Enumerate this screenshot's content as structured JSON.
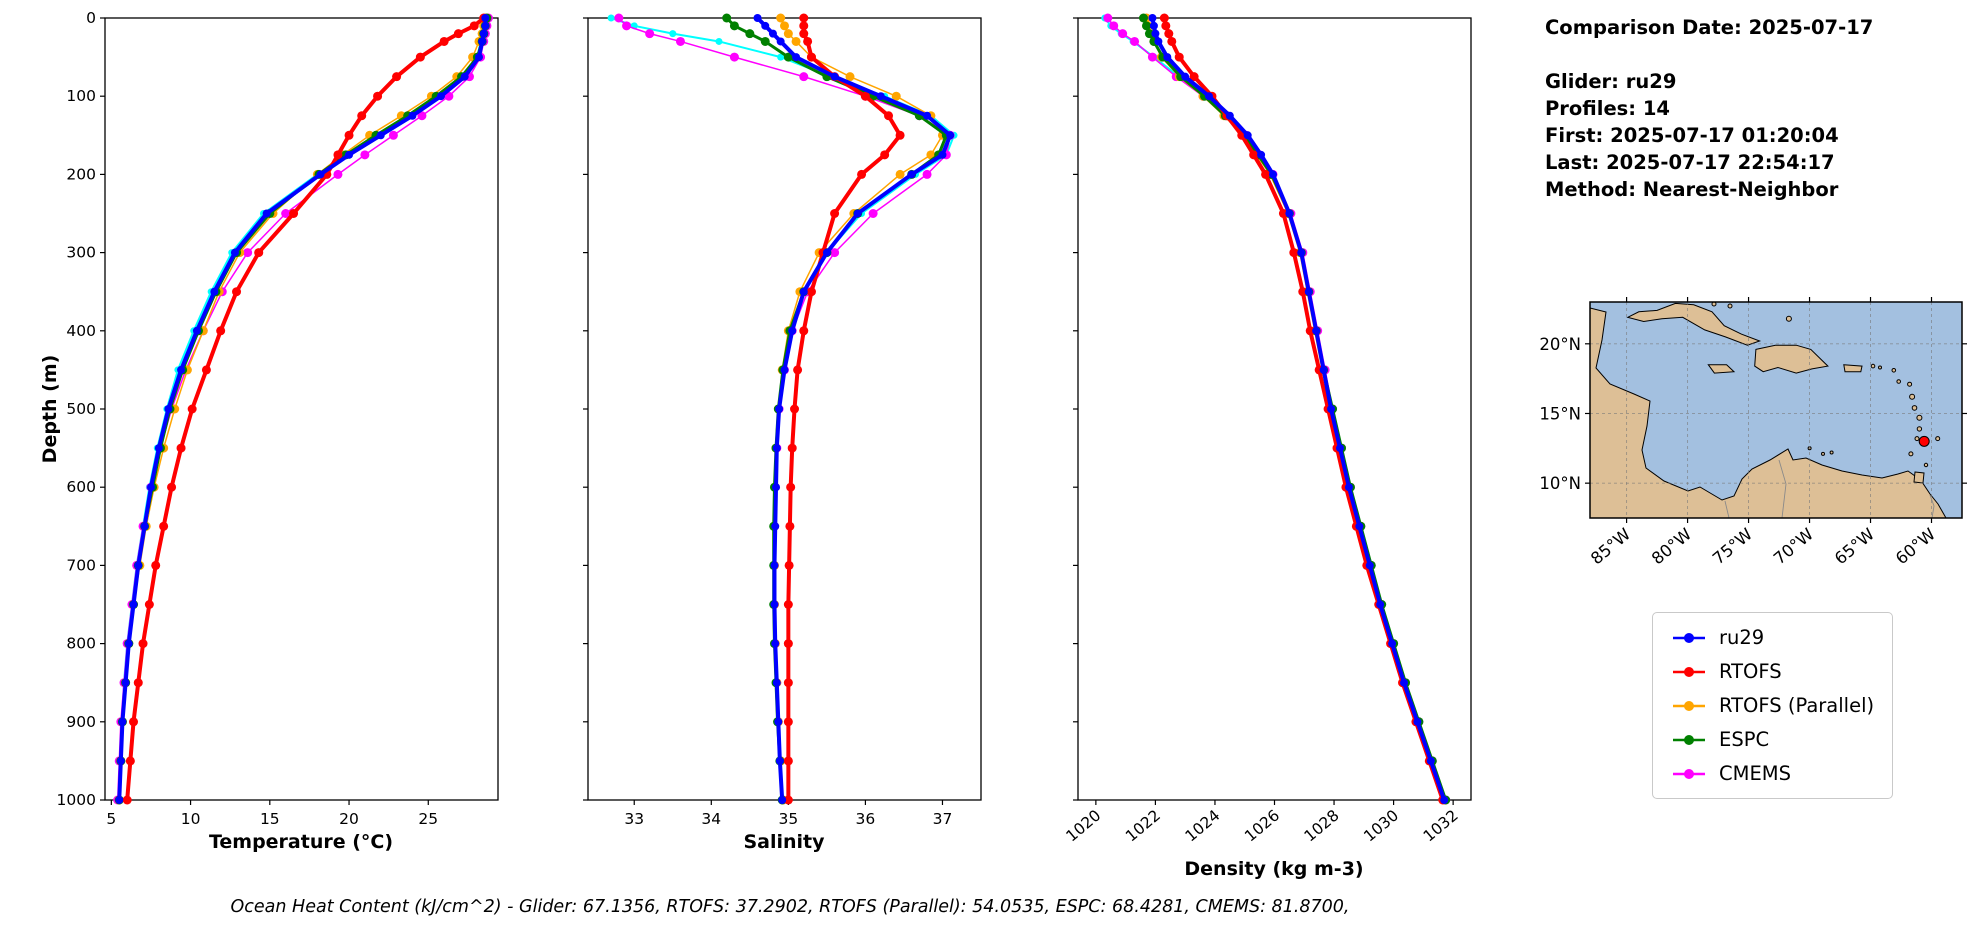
{
  "info_panel": {
    "comparison_date": "Comparison Date: 2025-07-17",
    "glider": "Glider: ru29",
    "profiles": "Profiles: 14",
    "first": "First: 2025-07-17 01:20:04",
    "last": "Last: 2025-07-17 22:54:17",
    "method": "Method: Nearest-Neighbor"
  },
  "footer": {
    "ohc_text": "Ocean Heat Content (kJ/cm^2) - Glider: 67.1356,  RTOFS: 37.2902,  RTOFS (Parallel): 54.0535,  ESPC: 68.4281,  CMEMS: 81.8700,"
  },
  "legend": {
    "items": [
      {
        "label": "ru29",
        "color": "#0000ff"
      },
      {
        "label": "RTOFS",
        "color": "#ff0000"
      },
      {
        "label": "RTOFS (Parallel)",
        "color": "#ffa500"
      },
      {
        "label": "ESPC",
        "color": "#008000"
      },
      {
        "label": "CMEMS",
        "color": "#ff00ff"
      }
    ]
  },
  "map": {
    "ocean_color": "#a3c0e0",
    "land_color": "#ddbf96",
    "marker_color": "#ff0000",
    "marker_lon_west": 60.6,
    "marker_lat_north": 13.0,
    "xtick_labels": [
      "85°W",
      "80°W",
      "75°W",
      "70°W",
      "65°W",
      "60°W"
    ],
    "ytick_labels": [
      "20°N",
      "15°N",
      "10°N"
    ]
  },
  "chart_data": [
    {
      "type": "line",
      "xlabel": "Temperature (°C)",
      "ylabel": "Depth (m)",
      "xlim": [
        4.6,
        29.4
      ],
      "ylim": [
        0,
        1000
      ],
      "y_inverted": true,
      "grid": false,
      "xticks": [
        5,
        10,
        15,
        20,
        25
      ],
      "yticks": [
        0,
        100,
        200,
        300,
        400,
        500,
        600,
        700,
        800,
        900,
        1000
      ],
      "xtick_rotation": 0,
      "show_ytick_labels": true,
      "depths": [
        0,
        10,
        20,
        30,
        50,
        75,
        100,
        125,
        150,
        175,
        200,
        250,
        300,
        350,
        400,
        450,
        500,
        550,
        600,
        650,
        700,
        750,
        800,
        850,
        900,
        950,
        1000
      ],
      "series": [
        {
          "name": "ru29-raw",
          "color": "#00ffff",
          "linewidth": 2,
          "markersize": 3.5,
          "values": [
            28.5,
            28.55,
            28.45,
            28.3,
            28.1,
            27.1,
            25.6,
            23.8,
            21.8,
            19.8,
            18.0,
            14.6,
            12.6,
            11.3,
            10.2,
            9.2,
            8.5,
            7.9,
            7.4,
            7.0,
            6.6,
            6.3,
            6.0,
            5.8,
            5.65,
            5.55,
            5.45
          ]
        },
        {
          "name": "CMEMS",
          "color": "#ff00ff",
          "linewidth": 1.5,
          "markersize": 4.5,
          "values": [
            28.8,
            28.7,
            28.6,
            28.5,
            28.3,
            27.6,
            26.3,
            24.6,
            22.8,
            21.0,
            19.3,
            16.0,
            13.6,
            12.0,
            10.8,
            9.7,
            8.8,
            8.1,
            7.5,
            7.0,
            6.6,
            6.3,
            6.0,
            5.8,
            5.6,
            5.5,
            5.4
          ]
        },
        {
          "name": "RTOFS-Parallel",
          "color": "#ffa500",
          "linewidth": 1.5,
          "markersize": 4.5,
          "values": [
            28.6,
            28.5,
            28.4,
            28.2,
            27.8,
            26.8,
            25.2,
            23.3,
            21.3,
            19.6,
            18.0,
            15.2,
            13.1,
            11.8,
            10.8,
            9.8,
            9.0,
            8.3,
            7.7,
            7.2,
            6.8,
            6.4,
            6.1,
            5.9,
            5.7,
            5.6,
            5.5
          ]
        },
        {
          "name": "ESPC",
          "color": "#008000",
          "linewidth": 3,
          "markersize": 4.5,
          "values": [
            28.7,
            28.6,
            28.5,
            28.4,
            28.1,
            27.1,
            25.5,
            23.7,
            21.7,
            19.8,
            18.1,
            15.0,
            12.9,
            11.6,
            10.5,
            9.5,
            8.7,
            8.1,
            7.6,
            7.1,
            6.7,
            6.4,
            6.1,
            5.9,
            5.7,
            5.6,
            5.5
          ]
        },
        {
          "name": "RTOFS",
          "color": "#ff0000",
          "linewidth": 4,
          "markersize": 4.5,
          "values": [
            28.5,
            27.9,
            26.9,
            26.0,
            24.5,
            23.0,
            21.8,
            20.8,
            20.0,
            19.3,
            18.6,
            16.5,
            14.3,
            12.9,
            11.9,
            11.0,
            10.1,
            9.4,
            8.8,
            8.3,
            7.8,
            7.4,
            7.0,
            6.7,
            6.4,
            6.2,
            6.0
          ]
        },
        {
          "name": "ru29",
          "color": "#0000ff",
          "linewidth": 4,
          "markersize": 4,
          "values": [
            28.6,
            28.6,
            28.5,
            28.4,
            28.2,
            27.3,
            25.8,
            24.0,
            22.0,
            20.0,
            18.2,
            14.8,
            12.8,
            11.5,
            10.4,
            9.4,
            8.6,
            8.0,
            7.5,
            7.1,
            6.7,
            6.4,
            6.1,
            5.9,
            5.7,
            5.6,
            5.5
          ]
        }
      ]
    },
    {
      "type": "line",
      "xlabel": "Salinity",
      "ylabel": "",
      "xlim": [
        32.4,
        37.5
      ],
      "ylim": [
        0,
        1000
      ],
      "y_inverted": true,
      "grid": false,
      "xticks": [
        33,
        34,
        35,
        36,
        37
      ],
      "yticks": [
        0,
        100,
        200,
        300,
        400,
        500,
        600,
        700,
        800,
        900,
        1000
      ],
      "xtick_rotation": 0,
      "show_ytick_labels": false,
      "depths": [
        0,
        10,
        20,
        30,
        50,
        75,
        100,
        125,
        150,
        175,
        200,
        250,
        300,
        350,
        400,
        450,
        500,
        550,
        600,
        650,
        700,
        750,
        800,
        850,
        900,
        950,
        1000
      ],
      "series": [
        {
          "name": "ru29-raw",
          "color": "#00ffff",
          "linewidth": 2,
          "markersize": 3.5,
          "values": [
            32.7,
            33.0,
            33.5,
            34.1,
            34.9,
            35.55,
            36.25,
            36.85,
            37.15,
            37.05,
            36.65,
            35.95,
            35.5,
            35.2,
            35.03,
            34.94,
            34.87,
            34.84,
            34.83,
            34.82,
            34.82,
            34.82,
            34.83,
            34.85,
            34.87,
            34.89,
            34.92
          ]
        },
        {
          "name": "CMEMS",
          "color": "#ff00ff",
          "linewidth": 1.5,
          "markersize": 4.5,
          "values": [
            32.8,
            32.9,
            33.2,
            33.6,
            34.3,
            35.2,
            36.0,
            36.7,
            37.1,
            37.05,
            36.8,
            36.1,
            35.6,
            35.25,
            35.05,
            34.95,
            34.88,
            34.85,
            34.83,
            34.82,
            34.82,
            34.82,
            34.83,
            34.85,
            34.87,
            34.9,
            34.93
          ]
        },
        {
          "name": "RTOFS-Parallel",
          "color": "#ffa500",
          "linewidth": 1.5,
          "markersize": 4.5,
          "values": [
            34.9,
            34.95,
            35.0,
            35.1,
            35.3,
            35.8,
            36.4,
            36.85,
            37.0,
            36.85,
            36.45,
            35.85,
            35.4,
            35.15,
            35.0,
            34.92,
            34.87,
            34.84,
            34.83,
            34.82,
            34.82,
            34.82,
            34.83,
            34.85,
            34.87,
            34.9,
            34.93
          ]
        },
        {
          "name": "ESPC",
          "color": "#008000",
          "linewidth": 3,
          "markersize": 4.5,
          "values": [
            34.2,
            34.3,
            34.5,
            34.7,
            35.0,
            35.5,
            36.1,
            36.7,
            37.05,
            36.95,
            36.6,
            35.9,
            35.5,
            35.2,
            35.02,
            34.93,
            34.87,
            34.84,
            34.82,
            34.81,
            34.81,
            34.81,
            34.82,
            34.84,
            34.86,
            34.89,
            34.92
          ]
        },
        {
          "name": "RTOFS",
          "color": "#ff0000",
          "linewidth": 4,
          "markersize": 4.5,
          "values": [
            35.2,
            35.2,
            35.2,
            35.25,
            35.3,
            35.6,
            36.0,
            36.3,
            36.45,
            36.25,
            35.95,
            35.6,
            35.45,
            35.3,
            35.2,
            35.12,
            35.08,
            35.05,
            35.03,
            35.02,
            35.01,
            35.0,
            35.0,
            35.0,
            35.0,
            35.0,
            35.0
          ]
        },
        {
          "name": "ru29",
          "color": "#0000ff",
          "linewidth": 4,
          "markersize": 4,
          "values": [
            34.6,
            34.7,
            34.8,
            34.9,
            35.1,
            35.6,
            36.2,
            36.8,
            37.1,
            37.0,
            36.6,
            35.9,
            35.5,
            35.2,
            35.05,
            34.95,
            34.88,
            34.85,
            34.84,
            34.83,
            34.82,
            34.82,
            34.83,
            34.85,
            34.87,
            34.89,
            34.92
          ]
        }
      ]
    },
    {
      "type": "line",
      "xlabel": "Density (kg m-3)",
      "ylabel": "",
      "xlim": [
        1019.4,
        1032.6
      ],
      "ylim": [
        0,
        1000
      ],
      "y_inverted": true,
      "grid": false,
      "xticks": [
        1020,
        1022,
        1024,
        1026,
        1028,
        1030,
        1032
      ],
      "yticks": [
        0,
        100,
        200,
        300,
        400,
        500,
        600,
        700,
        800,
        900,
        1000
      ],
      "xtick_rotation": 40,
      "show_ytick_labels": false,
      "depths": [
        0,
        10,
        20,
        30,
        50,
        75,
        100,
        125,
        150,
        175,
        200,
        250,
        300,
        350,
        400,
        450,
        500,
        550,
        600,
        650,
        700,
        750,
        800,
        850,
        900,
        950,
        1000
      ],
      "series": [
        {
          "name": "ru29-raw",
          "color": "#00ffff",
          "linewidth": 2,
          "markersize": 3.5,
          "values": [
            1020.3,
            1020.5,
            1020.85,
            1021.25,
            1021.95,
            1022.8,
            1023.7,
            1024.45,
            1025.1,
            1025.55,
            1025.95,
            1026.5,
            1026.9,
            1027.15,
            1027.4,
            1027.65,
            1027.9,
            1028.2,
            1028.5,
            1028.85,
            1029.2,
            1029.55,
            1029.95,
            1030.35,
            1030.8,
            1031.25,
            1031.7
          ]
        },
        {
          "name": "CMEMS",
          "color": "#ff00ff",
          "linewidth": 1.5,
          "markersize": 4.5,
          "values": [
            1020.4,
            1020.6,
            1020.9,
            1021.3,
            1021.9,
            1022.7,
            1023.6,
            1024.4,
            1025.05,
            1025.5,
            1025.95,
            1026.55,
            1026.95,
            1027.2,
            1027.45,
            1027.7,
            1027.95,
            1028.25,
            1028.55,
            1028.9,
            1029.25,
            1029.6,
            1030.0,
            1030.4,
            1030.85,
            1031.3,
            1031.75
          ]
        },
        {
          "name": "RTOFS-Parallel",
          "color": "#ffa500",
          "linewidth": 1.5,
          "markersize": 4.5,
          "values": [
            1021.7,
            1021.75,
            1021.85,
            1021.95,
            1022.2,
            1022.8,
            1023.6,
            1024.3,
            1024.95,
            1025.4,
            1025.85,
            1026.45,
            1026.85,
            1027.1,
            1027.35,
            1027.6,
            1027.9,
            1028.2,
            1028.5,
            1028.85,
            1029.2,
            1029.55,
            1029.95,
            1030.35,
            1030.8,
            1031.25,
            1031.7
          ]
        },
        {
          "name": "ESPC",
          "color": "#008000",
          "linewidth": 3,
          "markersize": 4.5,
          "values": [
            1021.6,
            1021.7,
            1021.8,
            1021.95,
            1022.25,
            1022.85,
            1023.65,
            1024.35,
            1025.0,
            1025.45,
            1025.9,
            1026.5,
            1026.9,
            1027.15,
            1027.4,
            1027.65,
            1027.95,
            1028.25,
            1028.55,
            1028.9,
            1029.25,
            1029.6,
            1030.0,
            1030.4,
            1030.85,
            1031.3,
            1031.75
          ]
        },
        {
          "name": "RTOFS",
          "color": "#ff0000",
          "linewidth": 4,
          "markersize": 4.5,
          "values": [
            1022.3,
            1022.35,
            1022.45,
            1022.55,
            1022.8,
            1023.3,
            1023.9,
            1024.4,
            1024.9,
            1025.3,
            1025.7,
            1026.3,
            1026.65,
            1026.95,
            1027.2,
            1027.5,
            1027.8,
            1028.1,
            1028.4,
            1028.75,
            1029.1,
            1029.5,
            1029.9,
            1030.3,
            1030.75,
            1031.2,
            1031.65
          ]
        },
        {
          "name": "ru29",
          "color": "#0000ff",
          "linewidth": 4,
          "markersize": 4,
          "values": [
            1021.9,
            1021.95,
            1022.0,
            1022.1,
            1022.4,
            1023.0,
            1023.8,
            1024.5,
            1025.1,
            1025.55,
            1025.95,
            1026.5,
            1026.9,
            1027.15,
            1027.4,
            1027.65,
            1027.9,
            1028.2,
            1028.5,
            1028.85,
            1029.2,
            1029.55,
            1029.95,
            1030.35,
            1030.8,
            1031.25,
            1031.7
          ]
        }
      ]
    }
  ]
}
